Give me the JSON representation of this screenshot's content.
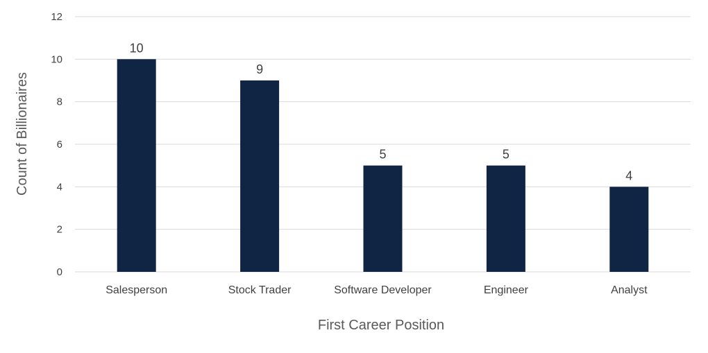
{
  "chart_data": {
    "type": "bar",
    "categories": [
      "Salesperson",
      "Stock Trader",
      "Software Developer",
      "Engineer",
      "Analyst"
    ],
    "values": [
      10,
      9,
      5,
      5,
      4
    ],
    "data_labels": [
      "10",
      "9",
      "5",
      "5",
      "4"
    ],
    "xlabel": "First Career Position",
    "ylabel": "Count of Billionaires",
    "ylim": [
      0,
      12
    ],
    "yticks": [
      0,
      2,
      4,
      6,
      8,
      10,
      12
    ],
    "ytick_labels": [
      "0",
      "2",
      "4",
      "6",
      "8",
      "10",
      "12"
    ],
    "grid": true,
    "legend": "none",
    "colors": {
      "bar": "#0f2543",
      "grid": "#d9d9d9",
      "text": "#404040"
    }
  }
}
